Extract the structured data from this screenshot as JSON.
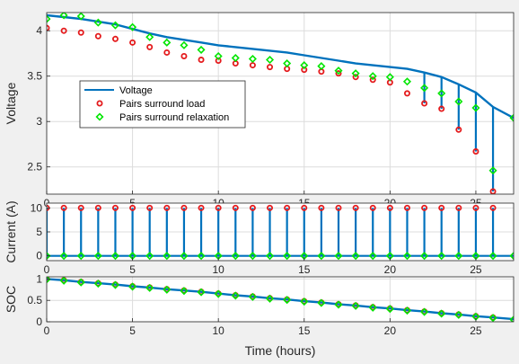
{
  "figure": {
    "background": "#f0f0f0"
  },
  "colors": {
    "voltage_line": "#0072bd",
    "load_marker": "#e41a1c",
    "relax_marker": "#00e600",
    "axis": "#262626"
  },
  "chart_data": [
    {
      "id": "voltage",
      "type": "line",
      "xlim": [
        0,
        27.2
      ],
      "ylim": [
        2.2,
        4.2
      ],
      "xticks": [
        0,
        5,
        10,
        15,
        20,
        25
      ],
      "xtick_labels": [
        "0",
        "5",
        "10",
        "15",
        "20",
        "25"
      ],
      "yticks": [
        2.5,
        3,
        3.5,
        4
      ],
      "ytick_labels": [
        "2.5",
        "3",
        "3.5",
        "4"
      ],
      "ylabel": "Voltage",
      "xlabel": "",
      "legend": {
        "placement": "center-left",
        "entries": [
          "Voltage",
          "Pairs surround load",
          "Pairs surround relaxation"
        ]
      },
      "series": [
        {
          "name": "Voltage",
          "x": [
            0,
            1,
            2,
            3,
            4,
            5,
            6,
            7,
            8,
            9,
            10,
            11,
            12,
            13,
            14,
            15,
            16,
            17,
            18,
            19,
            20,
            21,
            22,
            23,
            24,
            25,
            26,
            27.2
          ],
          "y": [
            4.17,
            4.15,
            4.13,
            4.1,
            4.07,
            4.02,
            3.97,
            3.93,
            3.9,
            3.87,
            3.84,
            3.82,
            3.8,
            3.78,
            3.76,
            3.73,
            3.7,
            3.67,
            3.64,
            3.62,
            3.6,
            3.58,
            3.54,
            3.49,
            3.41,
            3.32,
            3.16,
            3.04
          ]
        },
        {
          "name": "Pairs surround load",
          "x": [
            0,
            1,
            2,
            3,
            4,
            5,
            6,
            7,
            8,
            9,
            10,
            11,
            12,
            13,
            14,
            15,
            16,
            17,
            18,
            19,
            20,
            21,
            22,
            23,
            24,
            25,
            26
          ],
          "y": [
            4.03,
            4.0,
            3.98,
            3.94,
            3.91,
            3.87,
            3.82,
            3.76,
            3.72,
            3.68,
            3.67,
            3.64,
            3.62,
            3.6,
            3.58,
            3.57,
            3.55,
            3.53,
            3.49,
            3.46,
            3.43,
            3.31,
            3.2,
            3.14,
            2.91,
            2.67,
            2.23
          ]
        },
        {
          "name": "Pairs surround relaxation",
          "x": [
            0,
            1,
            2,
            3,
            4,
            5,
            6,
            7,
            8,
            9,
            10,
            11,
            12,
            13,
            14,
            15,
            16,
            17,
            18,
            19,
            20,
            21,
            22,
            23,
            24,
            25,
            26,
            27.2
          ],
          "y": [
            4.13,
            4.17,
            4.16,
            4.09,
            4.06,
            4.04,
            3.93,
            3.87,
            3.84,
            3.79,
            3.72,
            3.7,
            3.69,
            3.68,
            3.64,
            3.62,
            3.61,
            3.56,
            3.53,
            3.5,
            3.49,
            3.44,
            3.37,
            3.31,
            3.22,
            3.15,
            2.46,
            3.04
          ]
        }
      ]
    },
    {
      "id": "current",
      "type": "line",
      "xlim": [
        0,
        27.2
      ],
      "ylim": [
        -1,
        11
      ],
      "xticks": [
        0,
        5,
        10,
        15,
        20,
        25
      ],
      "xtick_labels": [
        "0",
        "5",
        "10",
        "15",
        "20",
        "25"
      ],
      "yticks": [
        0,
        5,
        10
      ],
      "ytick_labels": [
        "0",
        "5",
        "10"
      ],
      "ylabel": "Current (A)",
      "xlabel": "",
      "pulse_times": [
        0,
        1,
        2,
        3,
        4,
        5,
        6,
        7,
        8,
        9,
        10,
        11,
        12,
        13,
        14,
        15,
        16,
        17,
        18,
        19,
        20,
        21,
        22,
        23,
        24,
        25,
        26
      ],
      "pulse_level": 10,
      "base_level": 0,
      "series": [
        {
          "name": "Current",
          "x": [
            0,
            27.2
          ],
          "y": [
            0,
            0
          ]
        },
        {
          "name": "Pairs surround load",
          "x": [
            0,
            1,
            2,
            3,
            4,
            5,
            6,
            7,
            8,
            9,
            10,
            11,
            12,
            13,
            14,
            15,
            16,
            17,
            18,
            19,
            20,
            21,
            22,
            23,
            24,
            25,
            26
          ],
          "y": [
            10,
            10,
            10,
            10,
            10,
            10,
            10,
            10,
            10,
            10,
            10,
            10,
            10,
            10,
            10,
            10,
            10,
            10,
            10,
            10,
            10,
            10,
            10,
            10,
            10,
            10,
            10
          ]
        },
        {
          "name": "Pairs surround relaxation",
          "x": [
            0,
            1,
            2,
            3,
            4,
            5,
            6,
            7,
            8,
            9,
            10,
            11,
            12,
            13,
            14,
            15,
            16,
            17,
            18,
            19,
            20,
            21,
            22,
            23,
            24,
            25,
            26,
            27.2
          ],
          "y": [
            0,
            0,
            0,
            0,
            0,
            0,
            0,
            0,
            0,
            0,
            0,
            0,
            0,
            0,
            0,
            0,
            0,
            0,
            0,
            0,
            0,
            0,
            0,
            0,
            0,
            0,
            0,
            0
          ]
        }
      ]
    },
    {
      "id": "soc",
      "type": "line",
      "xlim": [
        0,
        27.2
      ],
      "ylim": [
        0,
        1.05
      ],
      "xticks": [
        0,
        5,
        10,
        15,
        20,
        25
      ],
      "xtick_labels": [
        "0",
        "5",
        "10",
        "15",
        "20",
        "25"
      ],
      "yticks": [
        0,
        0.5,
        1
      ],
      "ytick_labels": [
        "0",
        "0.5",
        "1"
      ],
      "ylabel": "SOC",
      "xlabel": "Time (hours)",
      "series": [
        {
          "name": "SOC",
          "x": [
            0,
            1,
            2,
            3,
            4,
            5,
            6,
            7,
            8,
            9,
            10,
            11,
            12,
            13,
            14,
            15,
            16,
            17,
            18,
            19,
            20,
            21,
            22,
            23,
            24,
            25,
            26,
            27.2
          ],
          "y": [
            1.0,
            0.97,
            0.93,
            0.9,
            0.87,
            0.83,
            0.8,
            0.76,
            0.73,
            0.7,
            0.66,
            0.62,
            0.59,
            0.55,
            0.52,
            0.48,
            0.45,
            0.41,
            0.38,
            0.34,
            0.31,
            0.27,
            0.24,
            0.2,
            0.17,
            0.13,
            0.1,
            0.06
          ]
        },
        {
          "name": "Pairs surround load",
          "x": [
            0,
            1,
            2,
            3,
            4,
            5,
            6,
            7,
            8,
            9,
            10,
            11,
            12,
            13,
            14,
            15,
            16,
            17,
            18,
            19,
            20,
            21,
            22,
            23,
            24,
            25,
            26
          ],
          "y": [
            1.0,
            0.97,
            0.93,
            0.9,
            0.87,
            0.83,
            0.8,
            0.76,
            0.73,
            0.7,
            0.66,
            0.62,
            0.59,
            0.55,
            0.52,
            0.48,
            0.45,
            0.41,
            0.38,
            0.34,
            0.31,
            0.27,
            0.24,
            0.2,
            0.17,
            0.13,
            0.1
          ]
        },
        {
          "name": "Pairs surround relaxation",
          "x": [
            0,
            1,
            2,
            3,
            4,
            5,
            6,
            7,
            8,
            9,
            10,
            11,
            12,
            13,
            14,
            15,
            16,
            17,
            18,
            19,
            20,
            21,
            22,
            23,
            24,
            25,
            26,
            27.2
          ],
          "y": [
            0.99,
            0.96,
            0.92,
            0.89,
            0.86,
            0.82,
            0.79,
            0.75,
            0.72,
            0.69,
            0.65,
            0.61,
            0.58,
            0.54,
            0.51,
            0.47,
            0.44,
            0.4,
            0.37,
            0.33,
            0.3,
            0.26,
            0.23,
            0.19,
            0.16,
            0.12,
            0.09,
            0.05
          ]
        }
      ]
    }
  ]
}
